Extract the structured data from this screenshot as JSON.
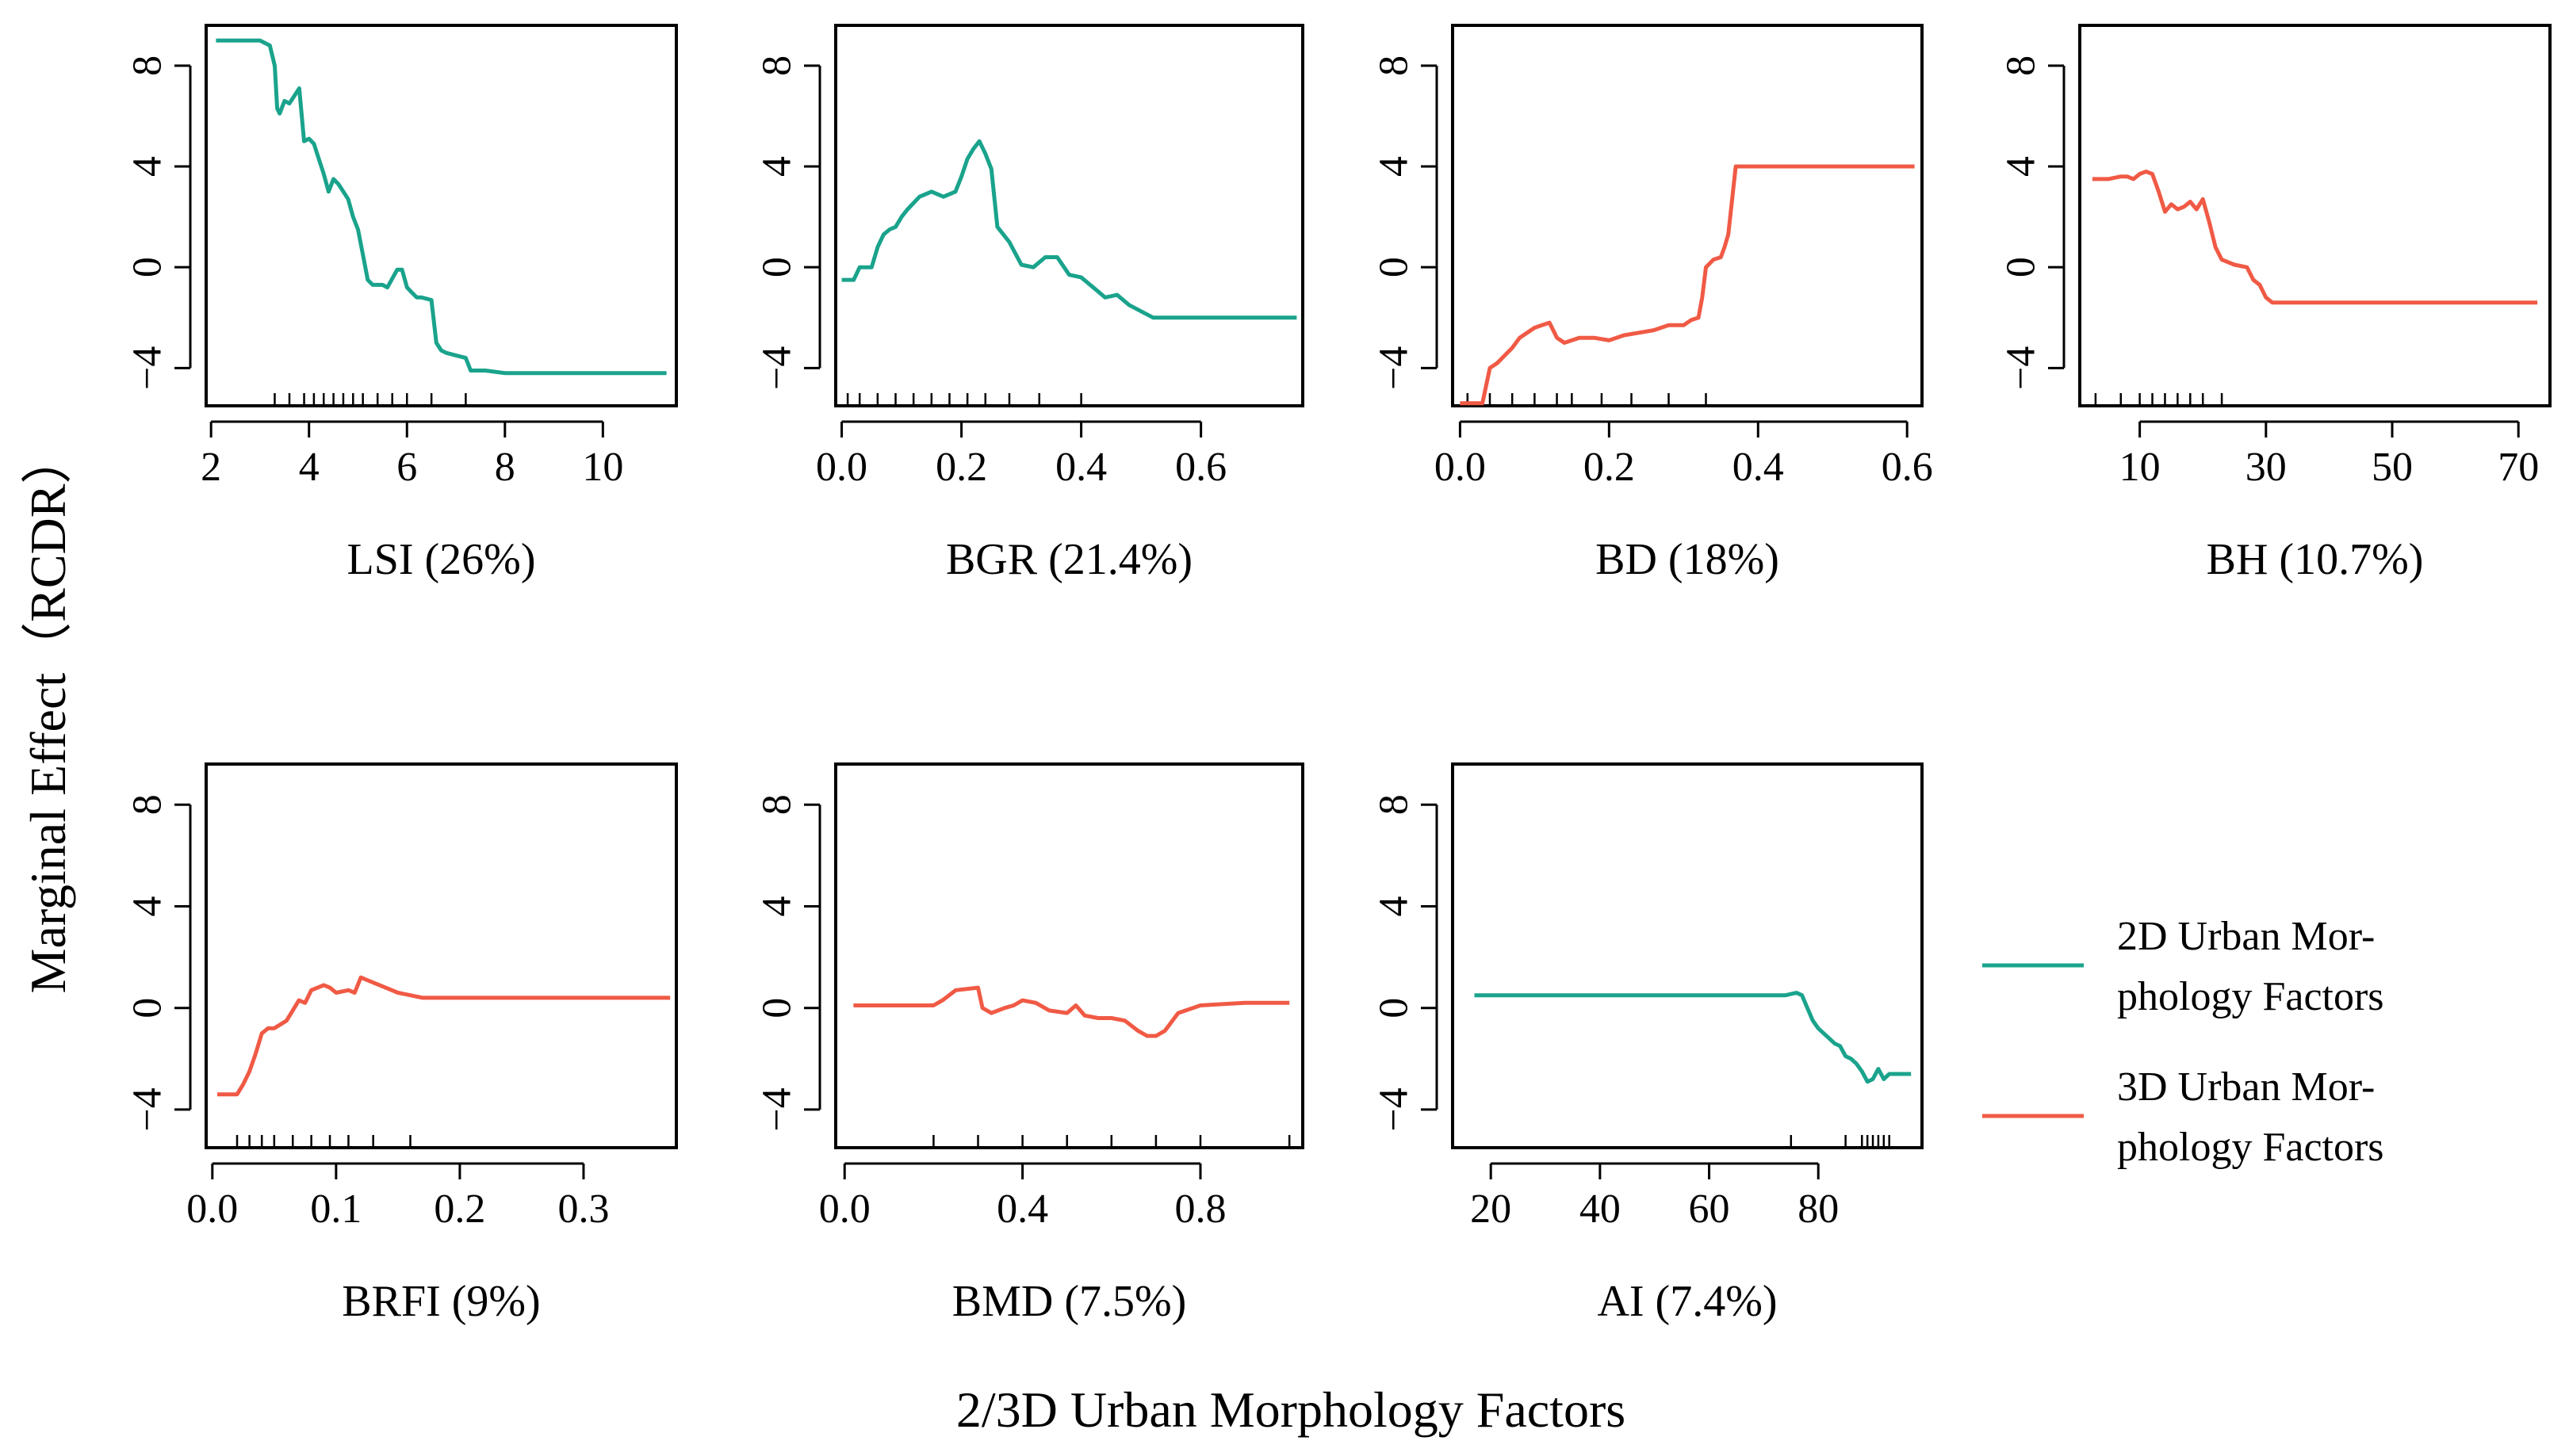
{
  "colors": {
    "d2": "#1aa38c",
    "d3": "#f05a45"
  },
  "axes": {
    "ylabel": "Marginal Effect（RCDR）",
    "xlabel": "2/3D Urban Morphology Factors"
  },
  "legend": {
    "items": [
      {
        "lines": [
          "2D Urban Mor-",
          "phology Factors"
        ],
        "color_key": "d2"
      },
      {
        "lines": [
          "3D Urban Mor-",
          "phology Factors"
        ],
        "color_key": "d3"
      }
    ],
    "placement": "right"
  },
  "chart_data": [
    {
      "type": "line",
      "id": "lsi",
      "label": "LSI  (26%)",
      "series_group": "d2",
      "xlim": [
        1.9,
        11.5
      ],
      "ylim": [
        -5.5,
        9.6
      ],
      "xticks": [
        2,
        4,
        6,
        8,
        10
      ],
      "yticks": [
        -4,
        0,
        4,
        8
      ],
      "rug": [
        3.3,
        3.6,
        3.9,
        4.1,
        4.3,
        4.5,
        4.7,
        4.9,
        5.1,
        5.4,
        5.7,
        6.0,
        6.5,
        7.2
      ],
      "x": [
        2.1,
        2.5,
        3.0,
        3.2,
        3.3,
        3.35,
        3.4,
        3.5,
        3.6,
        3.7,
        3.8,
        3.9,
        4.0,
        4.1,
        4.2,
        4.3,
        4.4,
        4.5,
        4.55,
        4.6,
        4.7,
        4.8,
        4.9,
        5.0,
        5.1,
        5.2,
        5.3,
        5.5,
        5.6,
        5.8,
        5.9,
        6.0,
        6.1,
        6.2,
        6.3,
        6.5,
        6.6,
        6.7,
        6.8,
        7.0,
        7.2,
        7.3,
        7.6,
        8.0,
        8.5,
        9.0,
        10.0,
        11.3
      ],
      "y": [
        9.0,
        9.0,
        9.0,
        8.8,
        8.0,
        6.3,
        6.1,
        6.6,
        6.5,
        6.8,
        7.1,
        5.0,
        5.1,
        4.9,
        4.3,
        3.7,
        3.0,
        3.5,
        3.4,
        3.3,
        3.0,
        2.7,
        2.0,
        1.5,
        0.5,
        -0.5,
        -0.7,
        -0.7,
        -0.8,
        -0.1,
        -0.1,
        -0.8,
        -1.0,
        -1.2,
        -1.2,
        -1.3,
        -3.0,
        -3.3,
        -3.4,
        -3.5,
        -3.6,
        -4.1,
        -4.1,
        -4.2,
        -4.2,
        -4.2,
        -4.2,
        -4.2
      ]
    },
    {
      "type": "line",
      "id": "bgr",
      "label": "BGR  (21.4%)",
      "series_group": "d2",
      "xlim": [
        -0.01,
        0.77
      ],
      "ylim": [
        -5.5,
        9.6
      ],
      "xticks": [
        0.0,
        0.2,
        0.4,
        0.6
      ],
      "xtick_labels": [
        "0.0",
        "0.2",
        "0.4",
        "0.6"
      ],
      "yticks": [
        -4,
        0,
        4,
        8
      ],
      "rug": [
        0.01,
        0.03,
        0.06,
        0.09,
        0.12,
        0.15,
        0.18,
        0.21,
        0.24,
        0.28,
        0.33,
        0.4
      ],
      "x": [
        0.0,
        0.02,
        0.03,
        0.05,
        0.06,
        0.07,
        0.08,
        0.09,
        0.1,
        0.11,
        0.13,
        0.15,
        0.17,
        0.19,
        0.2,
        0.21,
        0.22,
        0.23,
        0.24,
        0.25,
        0.26,
        0.27,
        0.28,
        0.3,
        0.32,
        0.34,
        0.36,
        0.38,
        0.4,
        0.42,
        0.44,
        0.46,
        0.48,
        0.52,
        0.6,
        0.7,
        0.76
      ],
      "y": [
        -0.5,
        -0.5,
        0.0,
        0.0,
        0.8,
        1.3,
        1.5,
        1.6,
        2.0,
        2.3,
        2.8,
        3.0,
        2.8,
        3.0,
        3.6,
        4.3,
        4.7,
        5.0,
        4.5,
        3.9,
        1.6,
        1.3,
        1.0,
        0.1,
        0.0,
        0.4,
        0.4,
        -0.3,
        -0.4,
        -0.8,
        -1.2,
        -1.1,
        -1.5,
        -2.0,
        -2.0,
        -2.0,
        -2.0
      ]
    },
    {
      "type": "line",
      "id": "bd",
      "label": "BD  (18%)",
      "series_group": "d3",
      "xlim": [
        -0.01,
        0.62
      ],
      "ylim": [
        -5.5,
        9.6
      ],
      "xticks": [
        0.0,
        0.2,
        0.4,
        0.6
      ],
      "xtick_labels": [
        "0.0",
        "0.2",
        "0.4",
        "0.6"
      ],
      "yticks": [
        -4,
        0,
        4,
        8
      ],
      "rug": [
        0.01,
        0.04,
        0.07,
        0.1,
        0.13,
        0.15,
        0.19,
        0.23,
        0.28,
        0.33
      ],
      "x": [
        0.0,
        0.03,
        0.04,
        0.05,
        0.07,
        0.08,
        0.1,
        0.11,
        0.12,
        0.13,
        0.14,
        0.16,
        0.18,
        0.2,
        0.22,
        0.24,
        0.26,
        0.28,
        0.3,
        0.31,
        0.32,
        0.325,
        0.33,
        0.34,
        0.35,
        0.355,
        0.36,
        0.37,
        0.45,
        0.55,
        0.61
      ],
      "y": [
        -5.4,
        -5.4,
        -4.0,
        -3.8,
        -3.2,
        -2.8,
        -2.4,
        -2.3,
        -2.2,
        -2.8,
        -3.0,
        -2.8,
        -2.8,
        -2.9,
        -2.7,
        -2.6,
        -2.5,
        -2.3,
        -2.3,
        -2.1,
        -2.0,
        -1.2,
        0.0,
        0.3,
        0.4,
        0.8,
        1.3,
        4.0,
        4.0,
        4.0,
        4.0
      ]
    },
    {
      "type": "line",
      "id": "bh",
      "label": "BH  (10.7%)",
      "series_group": "d3",
      "xlim": [
        0.5,
        75
      ],
      "ylim": [
        -5.5,
        9.6
      ],
      "xticks": [
        10,
        30,
        50,
        70
      ],
      "xtick_labels": [
        "10",
        "30",
        "50",
        "70"
      ],
      "yticks": [
        -4,
        0,
        4,
        8
      ],
      "rug": [
        3,
        7,
        10,
        12,
        14,
        16,
        18,
        20,
        23
      ],
      "x": [
        2.5,
        5,
        7,
        8,
        9,
        10,
        11,
        12,
        13,
        14,
        15,
        16,
        17,
        18,
        19,
        20,
        21,
        22,
        23,
        25,
        27,
        28,
        29,
        30,
        31,
        32,
        35,
        50,
        73
      ],
      "y": [
        3.5,
        3.5,
        3.6,
        3.6,
        3.5,
        3.7,
        3.8,
        3.7,
        3.0,
        2.2,
        2.5,
        2.3,
        2.4,
        2.6,
        2.3,
        2.7,
        1.8,
        0.8,
        0.3,
        0.1,
        0.0,
        -0.5,
        -0.7,
        -1.2,
        -1.4,
        -1.4,
        -1.4,
        -1.4,
        -1.4
      ]
    },
    {
      "type": "line",
      "id": "brfi",
      "label": "BRFI  (9%)",
      "series_group": "d3",
      "xlim": [
        -0.005,
        0.375
      ],
      "ylim": [
        -5.5,
        9.6
      ],
      "xticks": [
        0.0,
        0.1,
        0.2,
        0.3
      ],
      "xtick_labels": [
        "0.0",
        "0.1",
        "0.2",
        "0.3"
      ],
      "yticks": [
        -4,
        0,
        4,
        8
      ],
      "rug": [
        0.02,
        0.03,
        0.04,
        0.05,
        0.065,
        0.08,
        0.095,
        0.11,
        0.13,
        0.16
      ],
      "x": [
        0.004,
        0.02,
        0.025,
        0.03,
        0.035,
        0.04,
        0.045,
        0.05,
        0.06,
        0.065,
        0.07,
        0.075,
        0.08,
        0.09,
        0.095,
        0.1,
        0.11,
        0.115,
        0.12,
        0.125,
        0.13,
        0.14,
        0.15,
        0.16,
        0.17,
        0.2,
        0.3,
        0.37
      ],
      "y": [
        -3.4,
        -3.4,
        -3.0,
        -2.5,
        -1.8,
        -1.0,
        -0.8,
        -0.8,
        -0.5,
        -0.1,
        0.3,
        0.2,
        0.7,
        0.9,
        0.8,
        0.6,
        0.7,
        0.6,
        1.2,
        1.1,
        1.0,
        0.8,
        0.6,
        0.5,
        0.4,
        0.4,
        0.4,
        0.4
      ]
    },
    {
      "type": "line",
      "id": "bmd",
      "label": "BMD  (7.5%)",
      "series_group": "d3",
      "xlim": [
        -0.02,
        1.03
      ],
      "ylim": [
        -5.5,
        9.6
      ],
      "xticks": [
        0.0,
        0.4,
        0.8
      ],
      "xtick_labels": [
        "0.0",
        "0.4",
        "0.8"
      ],
      "yticks": [
        -4,
        0,
        4,
        8
      ],
      "rug": [
        0.2,
        0.3,
        0.4,
        0.5,
        0.6,
        0.7,
        0.8,
        1.0
      ],
      "x": [
        0.02,
        0.1,
        0.2,
        0.22,
        0.25,
        0.3,
        0.31,
        0.33,
        0.36,
        0.38,
        0.4,
        0.43,
        0.46,
        0.5,
        0.52,
        0.54,
        0.57,
        0.6,
        0.63,
        0.66,
        0.68,
        0.7,
        0.72,
        0.75,
        0.8,
        0.9,
        1.0
      ],
      "y": [
        0.1,
        0.1,
        0.1,
        0.3,
        0.7,
        0.8,
        0.0,
        -0.2,
        0.0,
        0.1,
        0.3,
        0.2,
        -0.1,
        -0.2,
        0.1,
        -0.3,
        -0.4,
        -0.4,
        -0.5,
        -0.9,
        -1.1,
        -1.1,
        -0.9,
        -0.2,
        0.1,
        0.2,
        0.2
      ]
    },
    {
      "type": "line",
      "id": "ai",
      "label": "AI  (7.4%)",
      "series_group": "d2",
      "xlim": [
        13,
        99
      ],
      "ylim": [
        -5.5,
        9.6
      ],
      "xticks": [
        20,
        40,
        60,
        80
      ],
      "xtick_labels": [
        "20",
        "40",
        "60",
        "80"
      ],
      "yticks": [
        -4,
        0,
        4,
        8
      ],
      "rug": [
        75,
        85,
        88,
        89,
        90,
        91,
        92,
        93
      ],
      "x": [
        17,
        40,
        60,
        74,
        76,
        77,
        78,
        79,
        80,
        81,
        82,
        83,
        84,
        85,
        86,
        87,
        88,
        89,
        90,
        91,
        92,
        93,
        95,
        97
      ],
      "y": [
        0.5,
        0.5,
        0.5,
        0.5,
        0.6,
        0.5,
        0.0,
        -0.5,
        -0.8,
        -1.0,
        -1.2,
        -1.4,
        -1.5,
        -1.9,
        -2.0,
        -2.2,
        -2.5,
        -2.9,
        -2.8,
        -2.4,
        -2.8,
        -2.6,
        -2.6,
        -2.6
      ]
    }
  ]
}
